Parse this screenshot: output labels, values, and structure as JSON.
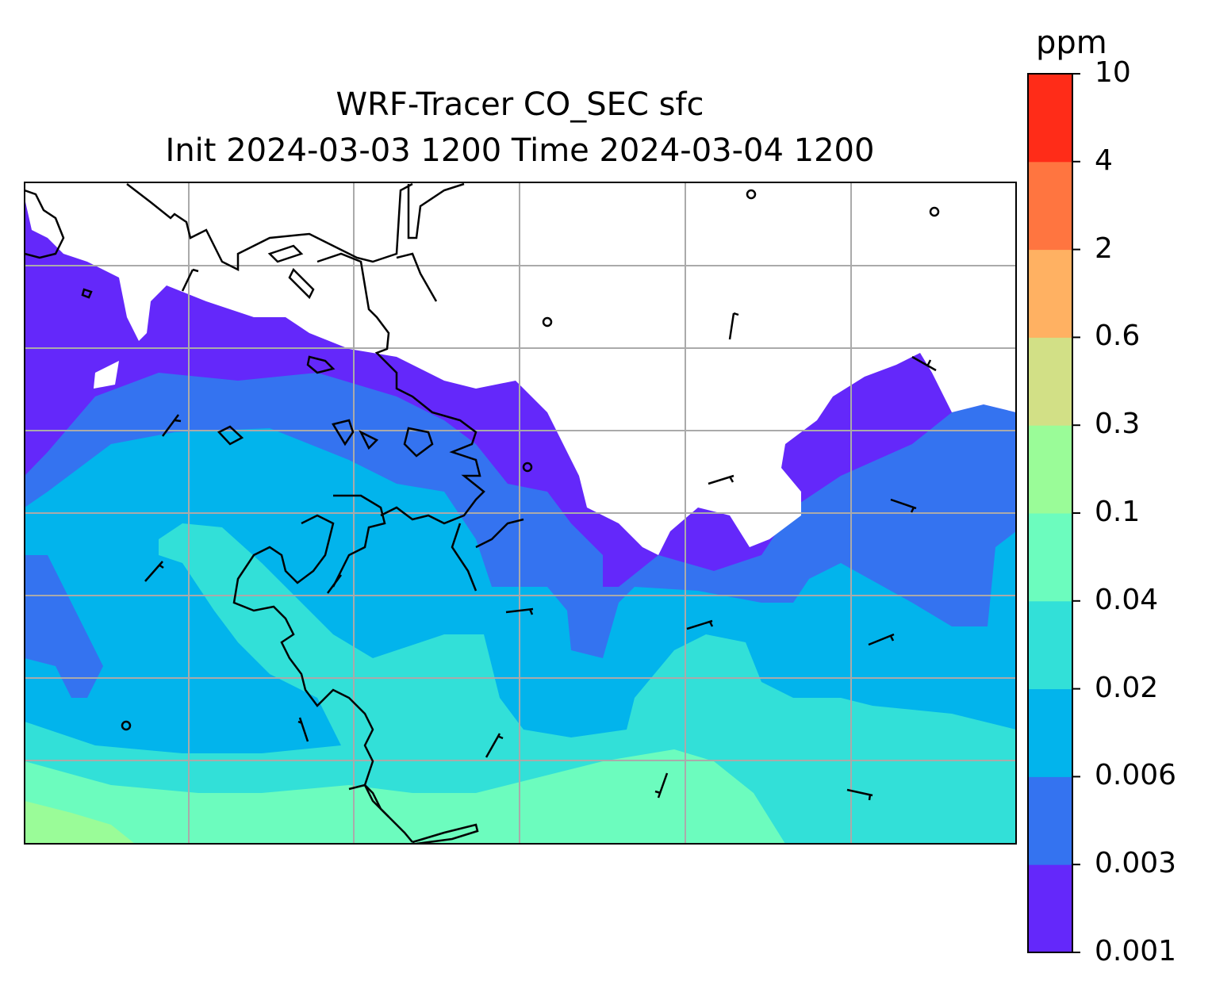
{
  "title": {
    "line1": "WRF-Tracer CO_SEC sfc",
    "line2": "Init 2024-03-03 1200 Time 2024-03-04 1200"
  },
  "colorbar": {
    "unit": "ppm",
    "ticks": [
      "0.001",
      "0.003",
      "0.006",
      "0.02",
      "0.04",
      "0.1",
      "0.3",
      "0.6",
      "2",
      "4",
      "10"
    ],
    "colors": [
      "#6428fa",
      "#3473f0",
      "#02b4ec",
      "#32e0d8",
      "#6cfcbe",
      "#9afc98",
      "#d2e086",
      "#ffb162",
      "#ff7540",
      "#ff2c18"
    ]
  },
  "map": {
    "background": "#ffffff",
    "coastline_color": "#000000",
    "gridline_color": "#aaaaaa",
    "grid": true
  }
}
